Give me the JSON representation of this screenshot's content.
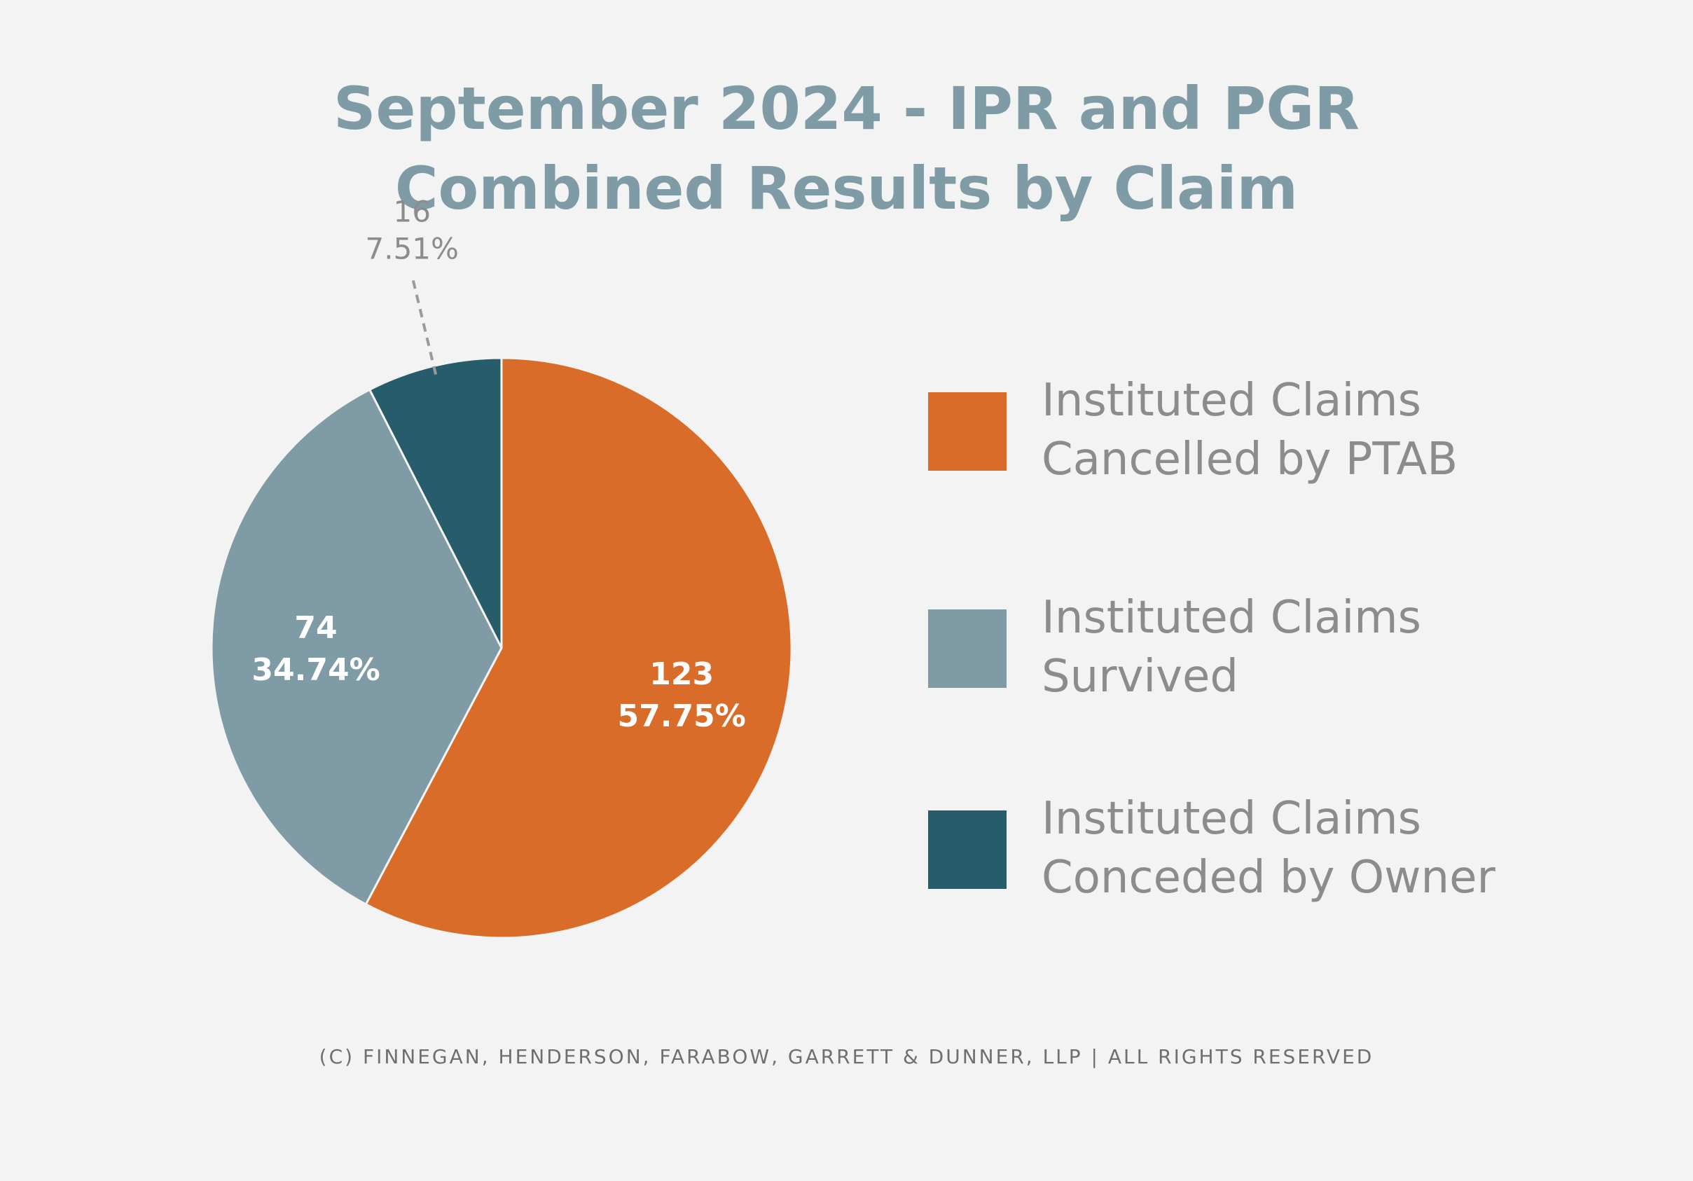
{
  "title": {
    "line1": "September 2024 - IPR and PGR",
    "line2": "Combined Results by Claim"
  },
  "chart_data": {
    "type": "pie",
    "title": "September 2024 - IPR and PGR Combined Results by Claim",
    "slices": [
      {
        "name": "Instituted Claims Cancelled by PTAB",
        "value": 123,
        "percent": "57.75%",
        "value_label": "123",
        "color": "#d96c28",
        "label_placement": "inside"
      },
      {
        "name": "Instituted Claims Survived",
        "value": 74,
        "percent": "34.74%",
        "value_label": "74",
        "color": "#7f9ba5",
        "label_placement": "inside"
      },
      {
        "name": "Instituted Claims Conceded by Owner",
        "value": 16,
        "percent": "7.51%",
        "value_label": "16",
        "color": "#275c6b",
        "label_placement": "outside"
      }
    ],
    "legend_placement": "right"
  },
  "legend": {
    "items": [
      {
        "line1": "Instituted Claims",
        "line2": "Cancelled by PTAB",
        "color": "#d96c28"
      },
      {
        "line1": "Instituted Claims",
        "line2": "Survived",
        "color": "#7f9ba5"
      },
      {
        "line1": "Instituted Claims",
        "line2": "Conceded by Owner",
        "color": "#275c6b"
      }
    ]
  },
  "footer": {
    "text": "(c) Finnegan, Henderson, Farabow, Garrett & Dunner, LLP | All Rights Reserved"
  }
}
